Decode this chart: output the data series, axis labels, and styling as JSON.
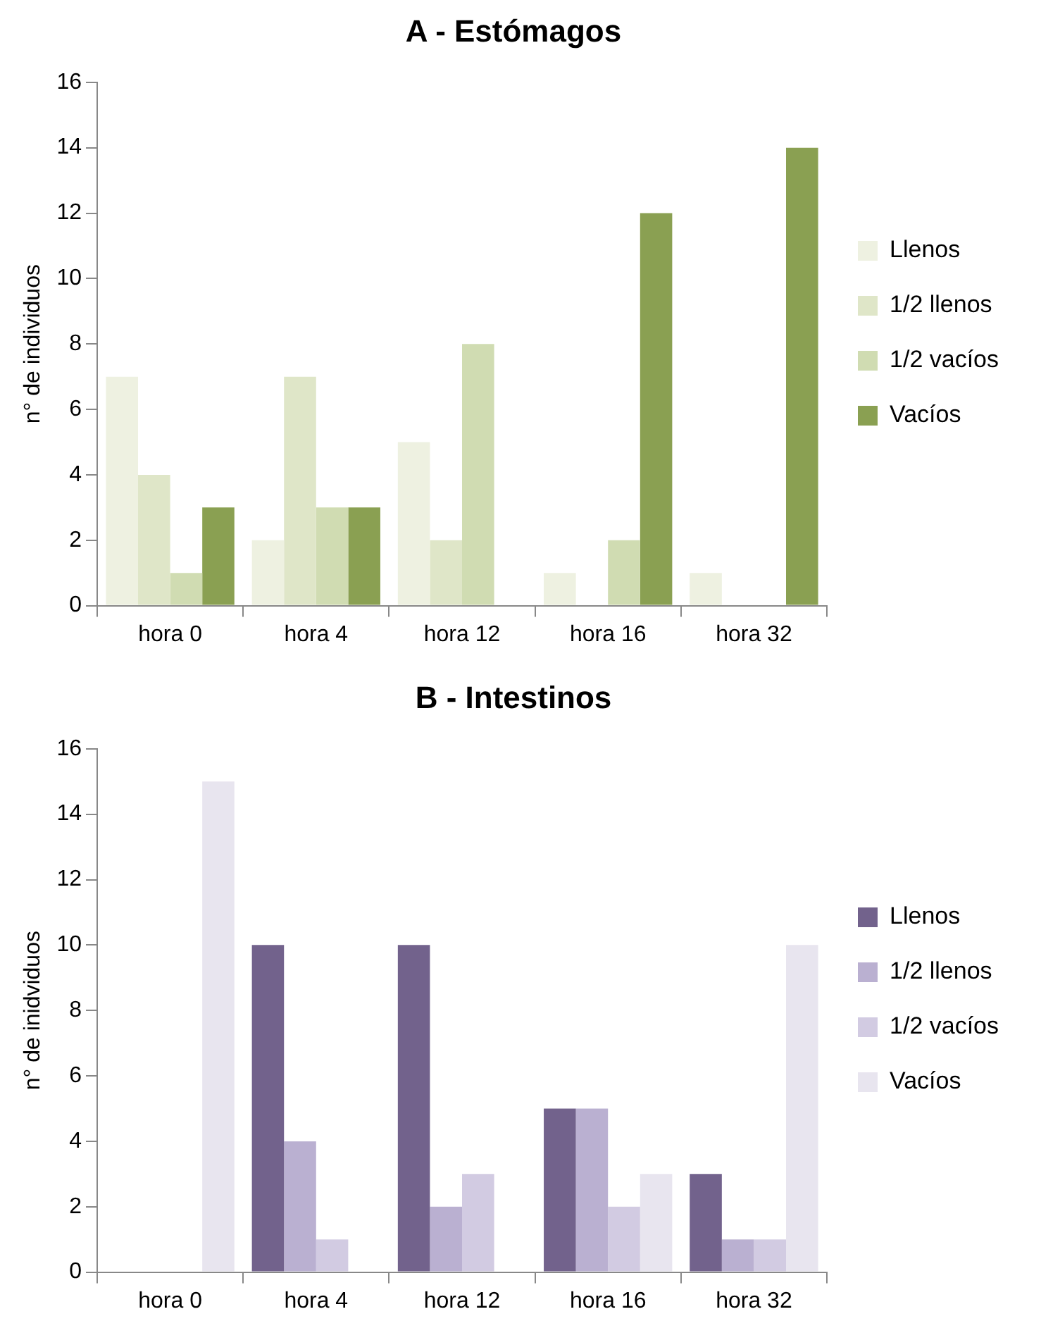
{
  "chart_data": [
    {
      "type": "bar",
      "title": "A - Estómagos",
      "ylabel": "n° de individuos",
      "categories": [
        "hora 0",
        "hora 4",
        "hora 12",
        "hora 16",
        "hora 32"
      ],
      "ylim": [
        0,
        16
      ],
      "yticks": [
        0,
        2,
        4,
        6,
        8,
        10,
        12,
        14,
        16
      ],
      "grid": false,
      "legend": "right",
      "series": [
        {
          "name": "Llenos",
          "color": "#eef1e1",
          "values": [
            7,
            2,
            5,
            1,
            1
          ]
        },
        {
          "name": "1/2 llenos",
          "color": "#dfe6c8",
          "values": [
            4,
            7,
            2,
            0,
            0
          ]
        },
        {
          "name": "1/2 vacíos",
          "color": "#d0dcb2",
          "values": [
            1,
            3,
            8,
            2,
            0
          ]
        },
        {
          "name": "Vacíos",
          "color": "#8aa052",
          "values": [
            3,
            3,
            0,
            12,
            14
          ]
        }
      ]
    },
    {
      "type": "bar",
      "title": "B - Intestinos",
      "ylabel": "n° de inidviduos",
      "categories": [
        "hora 0",
        "hora 4",
        "hora 12",
        "hora 16",
        "hora 32"
      ],
      "ylim": [
        0,
        16
      ],
      "yticks": [
        0,
        2,
        4,
        6,
        8,
        10,
        12,
        14,
        16
      ],
      "grid": false,
      "legend": "right",
      "series": [
        {
          "name": "Llenos",
          "color": "#72628c",
          "values": [
            0,
            10,
            10,
            5,
            3
          ]
        },
        {
          "name": "1/2 llenos",
          "color": "#bab0d1",
          "values": [
            0,
            4,
            2,
            5,
            1
          ]
        },
        {
          "name": "1/2 vacíos",
          "color": "#d2cbe2",
          "values": [
            0,
            1,
            3,
            2,
            1
          ]
        },
        {
          "name": "Vacíos",
          "color": "#e8e5ef",
          "values": [
            15,
            0,
            0,
            3,
            10
          ]
        }
      ]
    }
  ]
}
